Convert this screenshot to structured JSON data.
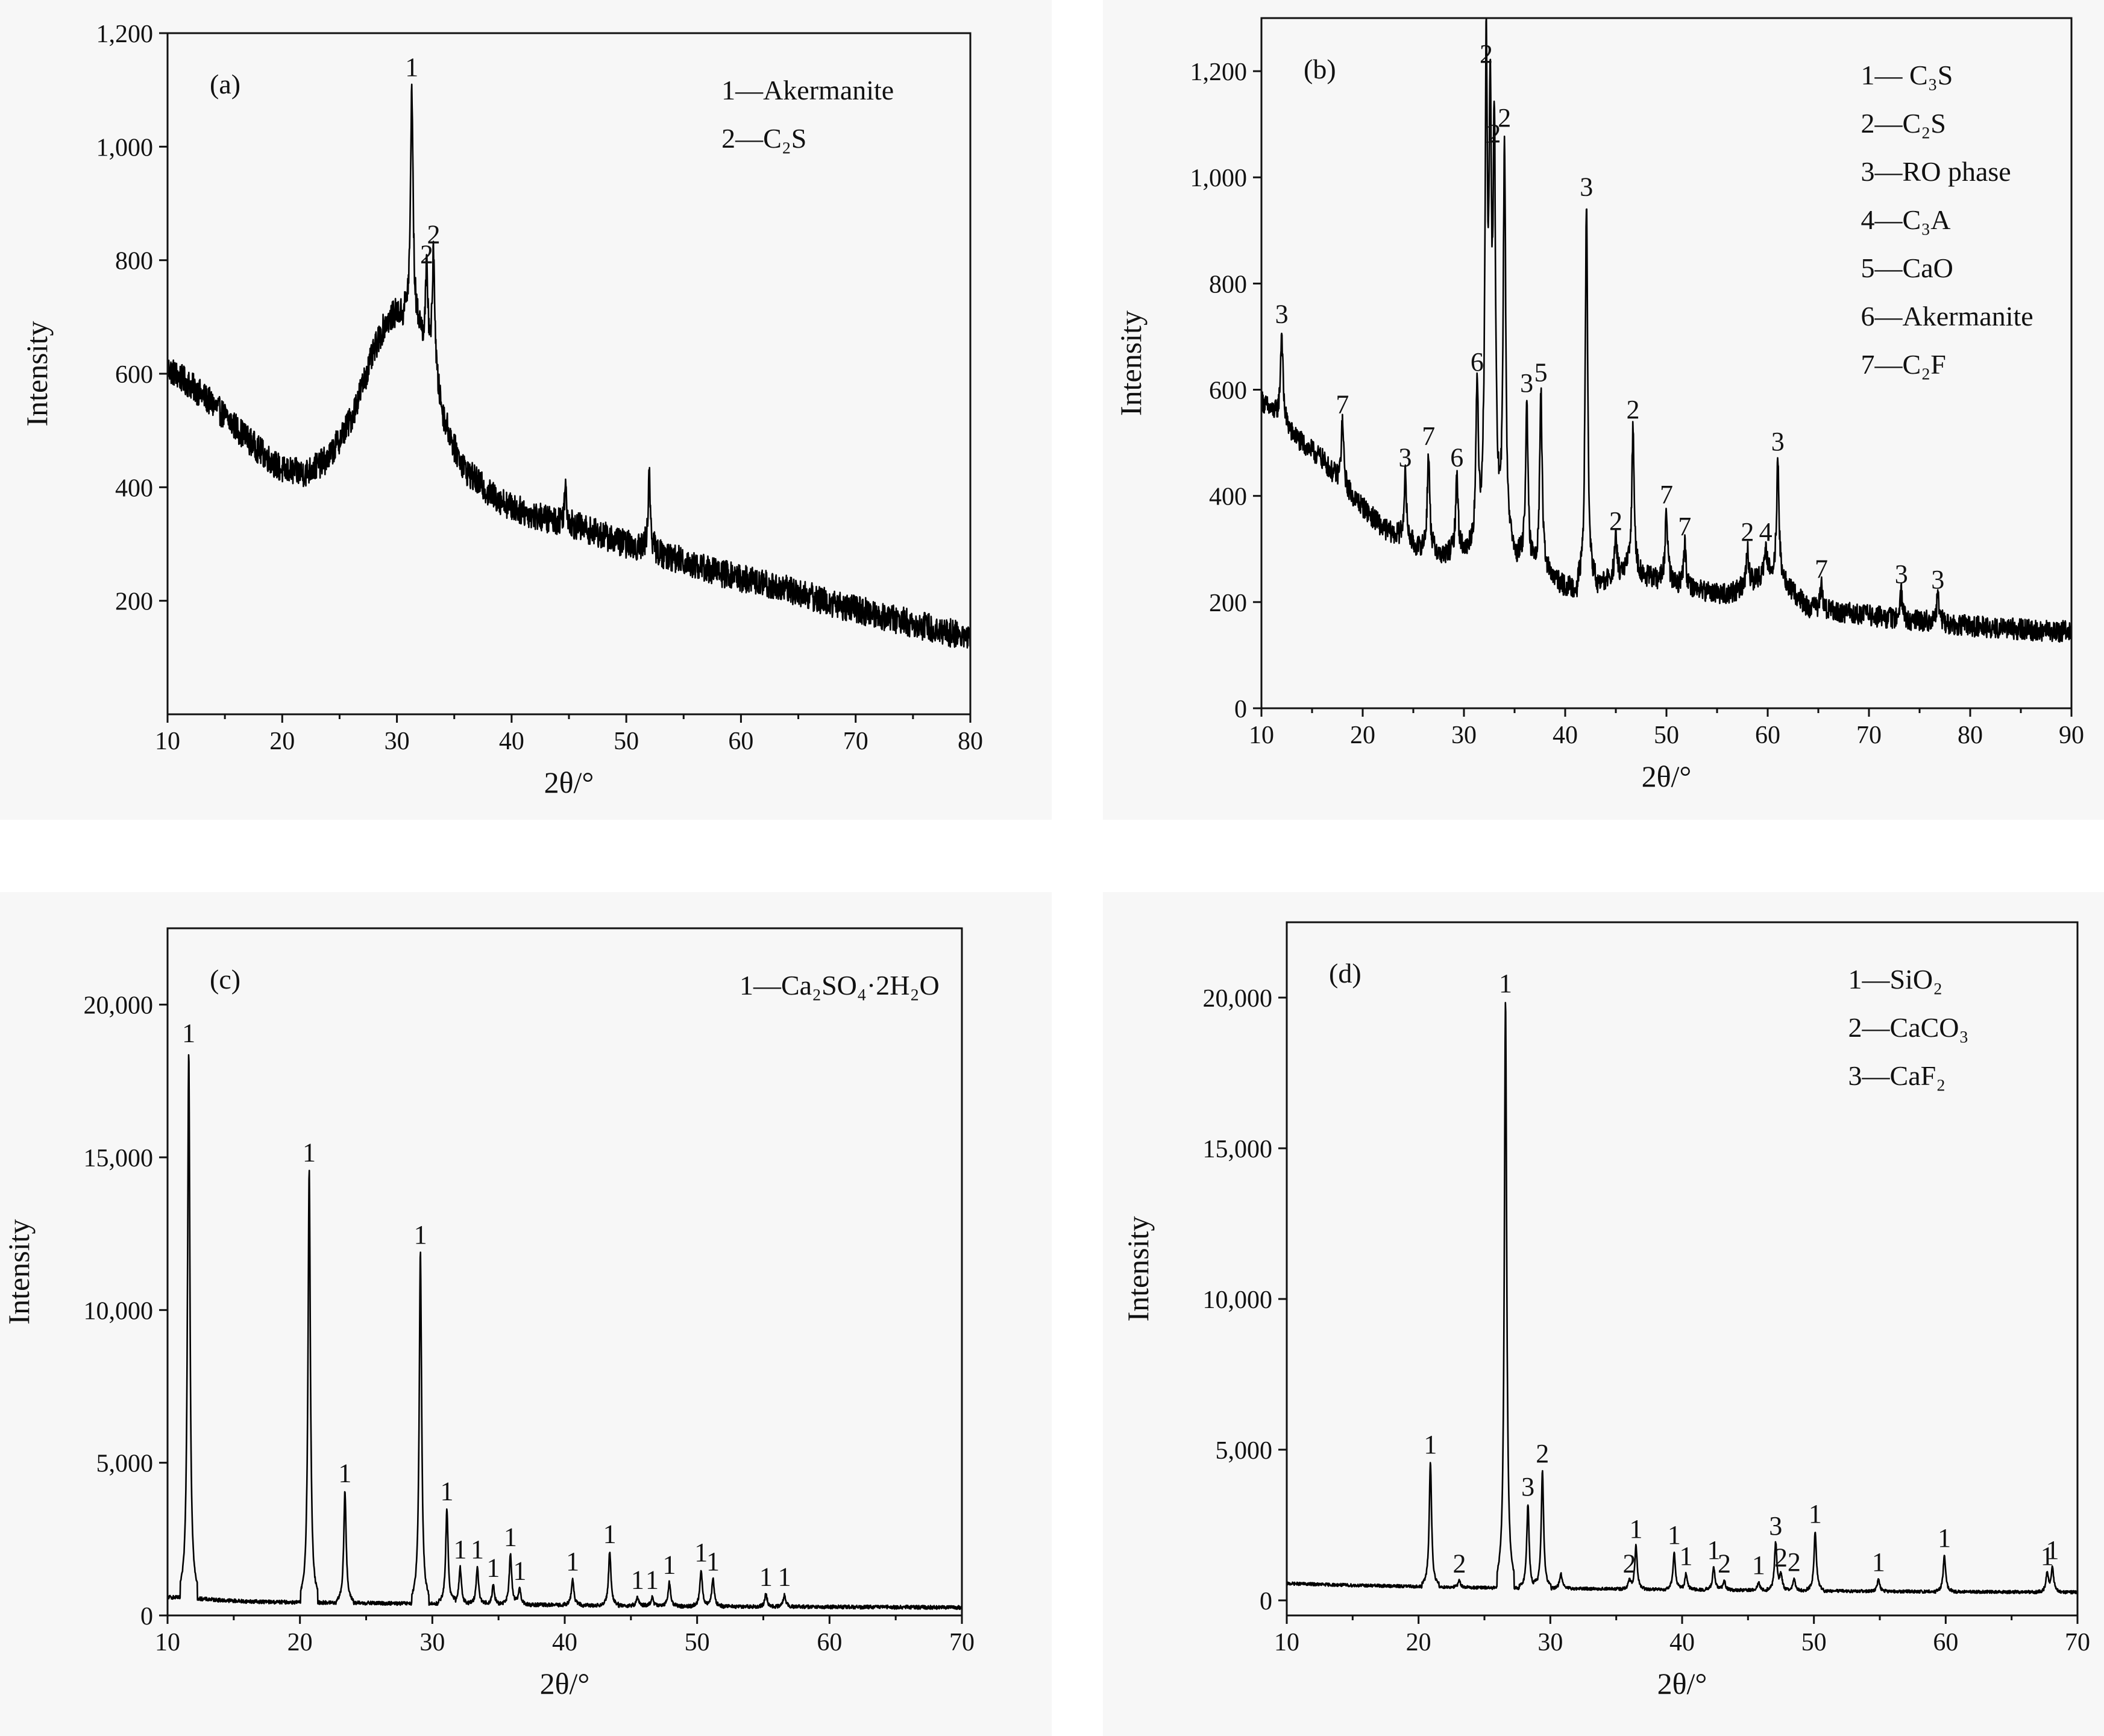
{
  "colors": {
    "trace": "#000000",
    "axis": "#111111",
    "panel_background": "#f7f7f7"
  },
  "chart_data": [
    {
      "type": "line",
      "panel": "(a)",
      "xlabel": "2θ/°",
      "ylabel": "Intensity",
      "xlim": [
        10,
        80
      ],
      "ylim": [
        0,
        1200
      ],
      "xticks": [
        "10",
        "20",
        "30",
        "40",
        "50",
        "60",
        "70",
        "80"
      ],
      "yticks": [
        "200",
        "400",
        "600",
        "800",
        "1,000",
        "1,200"
      ],
      "legend": [
        "1—Akermanite",
        "2—C₂S"
      ],
      "legend_position": "top-right",
      "noise_amplitude": 25,
      "profile": {
        "x": [
          10,
          12,
          14,
          16,
          18,
          20,
          22,
          24,
          26,
          27,
          28,
          29,
          30,
          31,
          32,
          33,
          34,
          35,
          36,
          38,
          40,
          42,
          44,
          46,
          48,
          50,
          52,
          55,
          58,
          60,
          62,
          65,
          68,
          70,
          72,
          75,
          78,
          80
        ],
        "y": [
          610,
          580,
          545,
          505,
          465,
          430,
          425,
          450,
          520,
          580,
          640,
          690,
          710,
          705,
          680,
          620,
          530,
          470,
          430,
          390,
          365,
          350,
          340,
          330,
          315,
          300,
          290,
          270,
          250,
          240,
          230,
          215,
          195,
          185,
          175,
          160,
          145,
          135
        ]
      },
      "peaks": [
        {
          "x": 31.3,
          "y": 1110,
          "label": "1"
        },
        {
          "x": 32.6,
          "y": 780,
          "label": "2"
        },
        {
          "x": 33.2,
          "y": 815,
          "label": "2"
        },
        {
          "x": 52.0,
          "y": 420,
          "label": ""
        },
        {
          "x": 44.7,
          "y": 400,
          "label": ""
        }
      ]
    },
    {
      "type": "line",
      "panel": "(b)",
      "xlabel": "2θ/°",
      "ylabel": "Intensity",
      "xlim": [
        10,
        90
      ],
      "ylim": [
        0,
        1300
      ],
      "xticks": [
        "10",
        "20",
        "30",
        "40",
        "50",
        "60",
        "70",
        "80",
        "90"
      ],
      "yticks": [
        "0",
        "200",
        "400",
        "600",
        "800",
        "1,000",
        "1,200"
      ],
      "legend": [
        "1— C₃S",
        "2—C₂S",
        "3—RO phase",
        "4—C₃A",
        "5—CaO",
        "6—Akermanite",
        "7—C₂F"
      ],
      "legend_position": "top-right",
      "noise_amplitude": 20,
      "profile": {
        "x": [
          10,
          12,
          14,
          16,
          18,
          20,
          22,
          24,
          26,
          28,
          30,
          32,
          34,
          36,
          38,
          40,
          42,
          44,
          46,
          48,
          50,
          52,
          54,
          56,
          58,
          60,
          62,
          64,
          66,
          68,
          70,
          72,
          74,
          76,
          78,
          80,
          84,
          88,
          90
        ],
        "y": [
          580,
          540,
          500,
          470,
          420,
          380,
          340,
          320,
          300,
          290,
          300,
          330,
          320,
          280,
          260,
          230,
          230,
          240,
          260,
          250,
          240,
          230,
          220,
          215,
          230,
          260,
          230,
          190,
          185,
          180,
          175,
          170,
          165,
          165,
          160,
          155,
          150,
          145,
          145
        ]
      },
      "peaks": [
        {
          "x": 12.0,
          "y": 710,
          "label": "3"
        },
        {
          "x": 18.0,
          "y": 540,
          "label": "7"
        },
        {
          "x": 24.2,
          "y": 440,
          "label": "3"
        },
        {
          "x": 26.5,
          "y": 480,
          "label": "7"
        },
        {
          "x": 29.3,
          "y": 440,
          "label": "6"
        },
        {
          "x": 31.3,
          "y": 620,
          "label": "6"
        },
        {
          "x": 32.2,
          "y": 1200,
          "label": "2"
        },
        {
          "x": 32.6,
          "y": 1050,
          "label": "1"
        },
        {
          "x": 33.0,
          "y": 1050,
          "label": "2"
        },
        {
          "x": 34.0,
          "y": 1080,
          "label": "2"
        },
        {
          "x": 36.2,
          "y": 580,
          "label": "3"
        },
        {
          "x": 37.6,
          "y": 600,
          "label": "5"
        },
        {
          "x": 42.1,
          "y": 950,
          "label": "3"
        },
        {
          "x": 45.0,
          "y": 320,
          "label": "2"
        },
        {
          "x": 46.7,
          "y": 530,
          "label": "2"
        },
        {
          "x": 50.0,
          "y": 370,
          "label": "7"
        },
        {
          "x": 51.8,
          "y": 310,
          "label": "7"
        },
        {
          "x": 58.0,
          "y": 300,
          "label": "2"
        },
        {
          "x": 59.8,
          "y": 300,
          "label": "4"
        },
        {
          "x": 61.0,
          "y": 470,
          "label": "3"
        },
        {
          "x": 65.3,
          "y": 230,
          "label": "7"
        },
        {
          "x": 73.2,
          "y": 220,
          "label": "3"
        },
        {
          "x": 76.8,
          "y": 210,
          "label": "3"
        }
      ]
    },
    {
      "type": "line",
      "panel": "(c)",
      "xlabel": "2θ/°",
      "ylabel": "Intensity",
      "xlim": [
        10,
        70
      ],
      "ylim": [
        0,
        22500
      ],
      "xticks": [
        "10",
        "20",
        "30",
        "40",
        "50",
        "60",
        "70"
      ],
      "yticks": [
        "0",
        "5,000",
        "10,000",
        "15,000",
        "20,000"
      ],
      "legend": [
        "1—Ca₂SO₄·2H₂O"
      ],
      "legend_position": "top-right",
      "noise_amplitude": 60,
      "profile": {
        "x": [
          10,
          12,
          14,
          16,
          18,
          20,
          22,
          24,
          26,
          28,
          30,
          32,
          34,
          36,
          38,
          40,
          45,
          50,
          55,
          60,
          65,
          70
        ],
        "y": [
          600,
          560,
          500,
          460,
          440,
          430,
          420,
          410,
          400,
          390,
          390,
          380,
          370,
          360,
          350,
          340,
          320,
          300,
          290,
          280,
          270,
          260
        ]
      },
      "peaks": [
        {
          "x": 11.6,
          "y": 18500,
          "label": "1"
        },
        {
          "x": 20.7,
          "y": 14600,
          "label": "1"
        },
        {
          "x": 23.4,
          "y": 4100,
          "label": "1"
        },
        {
          "x": 29.1,
          "y": 11900,
          "label": "1"
        },
        {
          "x": 31.1,
          "y": 3500,
          "label": "1"
        },
        {
          "x": 32.1,
          "y": 1600,
          "label": "1"
        },
        {
          "x": 33.4,
          "y": 1600,
          "label": "1"
        },
        {
          "x": 34.6,
          "y": 1000,
          "label": "1"
        },
        {
          "x": 35.9,
          "y": 2000,
          "label": "1"
        },
        {
          "x": 36.6,
          "y": 900,
          "label": "1"
        },
        {
          "x": 40.6,
          "y": 1200,
          "label": "1"
        },
        {
          "x": 43.4,
          "y": 2100,
          "label": "1"
        },
        {
          "x": 45.5,
          "y": 600,
          "label": "1"
        },
        {
          "x": 46.6,
          "y": 600,
          "label": "1"
        },
        {
          "x": 47.9,
          "y": 1100,
          "label": "1"
        },
        {
          "x": 50.3,
          "y": 1500,
          "label": "1"
        },
        {
          "x": 51.2,
          "y": 1200,
          "label": "1"
        },
        {
          "x": 55.2,
          "y": 700,
          "label": "1"
        },
        {
          "x": 56.6,
          "y": 700,
          "label": "1"
        }
      ]
    },
    {
      "type": "line",
      "panel": "(d)",
      "xlabel": "2θ/°",
      "ylabel": "Intensity",
      "xlim": [
        10,
        70
      ],
      "ylim": [
        -500,
        22500
      ],
      "xticks": [
        "10",
        "20",
        "30",
        "40",
        "50",
        "60",
        "70"
      ],
      "yticks": [
        "0",
        "5,000",
        "10,000",
        "15,000",
        "20,000"
      ],
      "legend": [
        "1—SiO₂",
        "2—CaCO₃",
        "3—CaF₂"
      ],
      "legend_position": "top-right",
      "noise_amplitude": 50,
      "profile": {
        "x": [
          10,
          15,
          20,
          25,
          30,
          35,
          40,
          45,
          50,
          55,
          60,
          65,
          70
        ],
        "y": [
          560,
          500,
          460,
          420,
          400,
          380,
          360,
          340,
          320,
          300,
          290,
          280,
          270
        ]
      },
      "peaks": [
        {
          "x": 20.9,
          "y": 4600,
          "label": "1"
        },
        {
          "x": 23.1,
          "y": 650,
          "label": "2"
        },
        {
          "x": 26.6,
          "y": 19900,
          "label": "1"
        },
        {
          "x": 28.3,
          "y": 3200,
          "label": "3"
        },
        {
          "x": 29.4,
          "y": 4300,
          "label": "2"
        },
        {
          "x": 30.8,
          "y": 900,
          "label": ""
        },
        {
          "x": 36.0,
          "y": 650,
          "label": "2"
        },
        {
          "x": 36.5,
          "y": 1800,
          "label": "1"
        },
        {
          "x": 39.4,
          "y": 1600,
          "label": "1"
        },
        {
          "x": 40.3,
          "y": 900,
          "label": "1"
        },
        {
          "x": 42.4,
          "y": 1100,
          "label": "1"
        },
        {
          "x": 43.2,
          "y": 650,
          "label": "2"
        },
        {
          "x": 45.8,
          "y": 600,
          "label": "1"
        },
        {
          "x": 47.1,
          "y": 1900,
          "label": "3"
        },
        {
          "x": 47.5,
          "y": 850,
          "label": "2"
        },
        {
          "x": 48.5,
          "y": 700,
          "label": "2"
        },
        {
          "x": 50.1,
          "y": 2300,
          "label": "1"
        },
        {
          "x": 54.9,
          "y": 700,
          "label": "1"
        },
        {
          "x": 59.9,
          "y": 1500,
          "label": "1"
        },
        {
          "x": 67.7,
          "y": 900,
          "label": "1"
        },
        {
          "x": 68.1,
          "y": 1100,
          "label": "1"
        }
      ]
    }
  ]
}
